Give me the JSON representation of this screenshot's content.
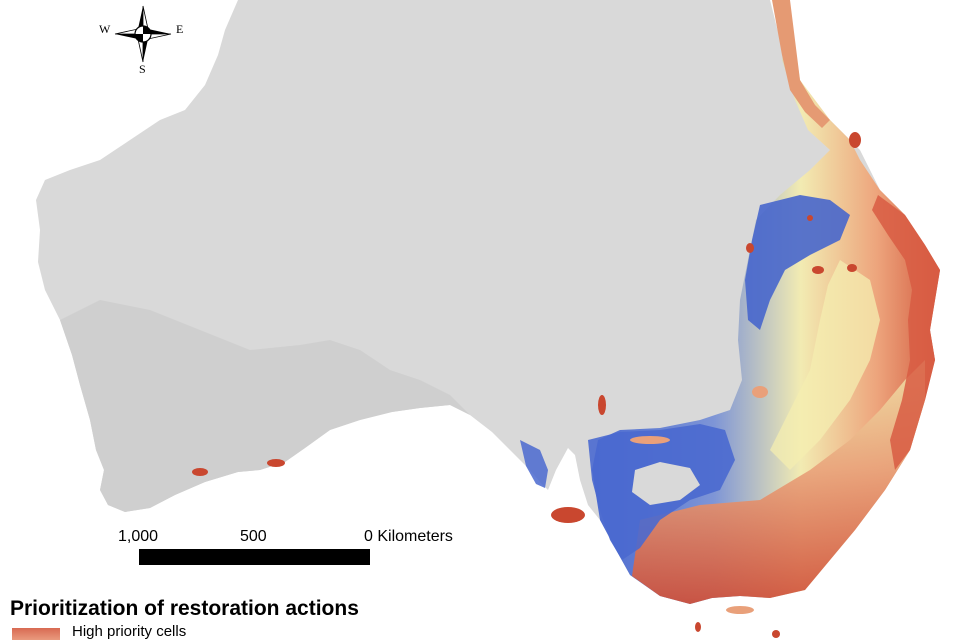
{
  "compass": {
    "north": "",
    "west": "W",
    "east": "E",
    "south": "S"
  },
  "scale_bar": {
    "label_left": "1,000",
    "label_mid": "500",
    "label_right": "0 Kilometers"
  },
  "legend": {
    "title": "Prioritization of restoration actions",
    "items": [
      {
        "label": "High priority cells",
        "color": "#d86a52"
      }
    ]
  },
  "colors": {
    "land": "#d9d9d9",
    "low_priority": "#4a69cf",
    "mid_priority": "#f4edb0",
    "high_priority": "#d0533c",
    "mid_high": "#eea77c"
  }
}
